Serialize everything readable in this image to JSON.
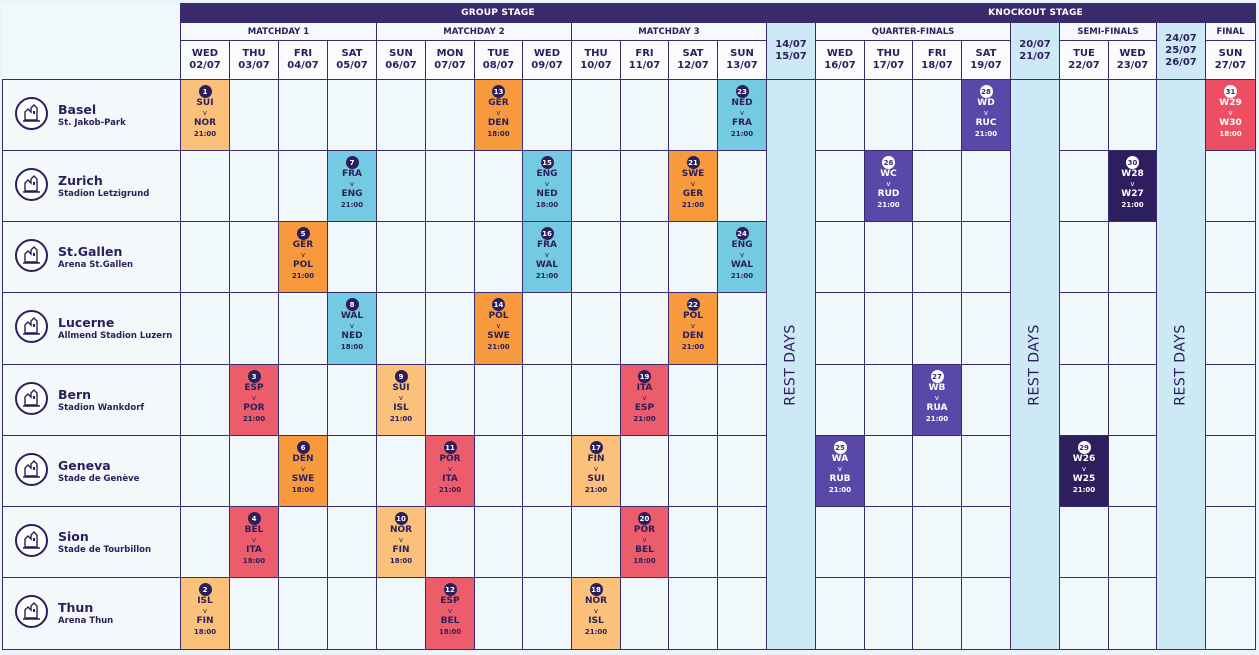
{
  "stages": {
    "group": "GROUP STAGE",
    "knockout": "KNOCKOUT STAGE"
  },
  "subheaders": [
    "MATCHDAY 1",
    "MATCHDAY 2",
    "MATCHDAY 3",
    "QUARTER-FINALS",
    "SEMI-FINALS",
    "FINAL"
  ],
  "rest_label": "REST DAYS",
  "dates": [
    {
      "d": "WED",
      "n": "02/07"
    },
    {
      "d": "THU",
      "n": "03/07"
    },
    {
      "d": "FRI",
      "n": "04/07"
    },
    {
      "d": "SAT",
      "n": "05/07"
    },
    {
      "d": "SUN",
      "n": "06/07"
    },
    {
      "d": "MON",
      "n": "07/07"
    },
    {
      "d": "TUE",
      "n": "08/07"
    },
    {
      "d": "WED",
      "n": "09/07"
    },
    {
      "d": "THU",
      "n": "10/07"
    },
    {
      "d": "FRI",
      "n": "11/07"
    },
    {
      "d": "SAT",
      "n": "12/07"
    },
    {
      "d": "SUN",
      "n": "13/07"
    },
    {
      "d": "14/07",
      "n": "15/07"
    },
    {
      "d": "WED",
      "n": "16/07"
    },
    {
      "d": "THU",
      "n": "17/07"
    },
    {
      "d": "FRI",
      "n": "18/07"
    },
    {
      "d": "SAT",
      "n": "19/07"
    },
    {
      "d": "20/07",
      "n": "21/07"
    },
    {
      "d": "TUE",
      "n": "22/07"
    },
    {
      "d": "WED",
      "n": "23/07"
    },
    {
      "d": "24/07",
      "n": "25/07",
      "m": "26/07"
    },
    {
      "d": "SUN",
      "n": "27/07"
    }
  ],
  "venues": [
    {
      "name": "Basel",
      "stadium": "St. Jakob-Park"
    },
    {
      "name": "Zurich",
      "stadium": "Stadion Letzigrund"
    },
    {
      "name": "St.Gallen",
      "stadium": "Arena St.Gallen"
    },
    {
      "name": "Lucerne",
      "stadium": "Allmend Stadion Luzern"
    },
    {
      "name": "Bern",
      "stadium": "Stadion Wankdorf"
    },
    {
      "name": "Geneva",
      "stadium": "Stade de Genève"
    },
    {
      "name": "Sion",
      "stadium": "Stade de Tourbillon"
    },
    {
      "name": "Thun",
      "stadium": "Arena Thun"
    }
  ],
  "colors": {
    "A": "#fbc07a",
    "B": "#ed5c6a",
    "C": "#f79a3e",
    "D": "#74c9e3",
    "QF": "#5a48a8",
    "SF": "#2d1f5e",
    "F": "#ed4e62",
    "rest": "#cde9f6"
  },
  "vs": "v",
  "matches": [
    {
      "col": 0,
      "row": 0,
      "num": "1",
      "home": "SUI",
      "away": "NOR",
      "time": "21:00",
      "grp": "A"
    },
    {
      "col": 0,
      "row": 7,
      "num": "2",
      "home": "ISL",
      "away": "FIN",
      "time": "18:00",
      "grp": "A"
    },
    {
      "col": 1,
      "row": 4,
      "num": "3",
      "home": "ESP",
      "away": "POR",
      "time": "21:00",
      "grp": "B"
    },
    {
      "col": 1,
      "row": 6,
      "num": "4",
      "home": "BEL",
      "away": "ITA",
      "time": "18:00",
      "grp": "B"
    },
    {
      "col": 2,
      "row": 2,
      "num": "5",
      "home": "GER",
      "away": "POL",
      "time": "21:00",
      "grp": "C"
    },
    {
      "col": 2,
      "row": 5,
      "num": "6",
      "home": "DEN",
      "away": "SWE",
      "time": "18:00",
      "grp": "C"
    },
    {
      "col": 3,
      "row": 1,
      "num": "7",
      "home": "FRA",
      "away": "ENG",
      "time": "21:00",
      "grp": "D"
    },
    {
      "col": 3,
      "row": 3,
      "num": "8",
      "home": "WAL",
      "away": "NED",
      "time": "18:00",
      "grp": "D"
    },
    {
      "col": 4,
      "row": 4,
      "num": "9",
      "home": "SUI",
      "away": "ISL",
      "time": "21:00",
      "grp": "A"
    },
    {
      "col": 4,
      "row": 6,
      "num": "10",
      "home": "NOR",
      "away": "FIN",
      "time": "18:00",
      "grp": "A"
    },
    {
      "col": 5,
      "row": 5,
      "num": "11",
      "home": "POR",
      "away": "ITA",
      "time": "21:00",
      "grp": "B"
    },
    {
      "col": 5,
      "row": 7,
      "num": "12",
      "home": "ESP",
      "away": "BEL",
      "time": "18:00",
      "grp": "B"
    },
    {
      "col": 6,
      "row": 0,
      "num": "13",
      "home": "GER",
      "away": "DEN",
      "time": "18:00",
      "grp": "C"
    },
    {
      "col": 6,
      "row": 3,
      "num": "14",
      "home": "POL",
      "away": "SWE",
      "time": "21:00",
      "grp": "C"
    },
    {
      "col": 7,
      "row": 1,
      "num": "15",
      "home": "ENG",
      "away": "NED",
      "time": "18:00",
      "grp": "D"
    },
    {
      "col": 7,
      "row": 2,
      "num": "16",
      "home": "FRA",
      "away": "WAL",
      "time": "21:00",
      "grp": "D"
    },
    {
      "col": 8,
      "row": 5,
      "num": "17",
      "home": "FIN",
      "away": "SUI",
      "time": "21:00",
      "grp": "A"
    },
    {
      "col": 8,
      "row": 7,
      "num": "18",
      "home": "NOR",
      "away": "ISL",
      "time": "21:00",
      "grp": "A"
    },
    {
      "col": 9,
      "row": 4,
      "num": "19",
      "home": "ITA",
      "away": "ESP",
      "time": "21:00",
      "grp": "B"
    },
    {
      "col": 9,
      "row": 6,
      "num": "20",
      "home": "POR",
      "away": "BEL",
      "time": "18:00",
      "grp": "B"
    },
    {
      "col": 10,
      "row": 1,
      "num": "21",
      "home": "SWE",
      "away": "GER",
      "time": "21:00",
      "grp": "C"
    },
    {
      "col": 10,
      "row": 3,
      "num": "22",
      "home": "POL",
      "away": "DEN",
      "time": "21:00",
      "grp": "C"
    },
    {
      "col": 11,
      "row": 0,
      "num": "23",
      "home": "NED",
      "away": "FRA",
      "time": "21:00",
      "grp": "D"
    },
    {
      "col": 11,
      "row": 2,
      "num": "24",
      "home": "ENG",
      "away": "WAL",
      "time": "21:00",
      "grp": "D"
    },
    {
      "col": 13,
      "row": 5,
      "num": "25",
      "home": "WA",
      "away": "RUB",
      "time": "21:00",
      "grp": "QF"
    },
    {
      "col": 14,
      "row": 1,
      "num": "26",
      "home": "WC",
      "away": "RUD",
      "time": "21:00",
      "grp": "QF"
    },
    {
      "col": 15,
      "row": 4,
      "num": "27",
      "home": "WB",
      "away": "RUA",
      "time": "21:00",
      "grp": "QF"
    },
    {
      "col": 16,
      "row": 0,
      "num": "28",
      "home": "WD",
      "away": "RUC",
      "time": "21:00",
      "grp": "QF"
    },
    {
      "col": 18,
      "row": 5,
      "num": "29",
      "home": "W26",
      "away": "W25",
      "time": "21:00",
      "grp": "SF"
    },
    {
      "col": 19,
      "row": 1,
      "num": "30",
      "home": "W28",
      "away": "W27",
      "time": "21:00",
      "grp": "SF"
    },
    {
      "col": 21,
      "row": 0,
      "num": "31",
      "home": "W29",
      "away": "W30",
      "time": "18:00",
      "grp": "F"
    }
  ]
}
